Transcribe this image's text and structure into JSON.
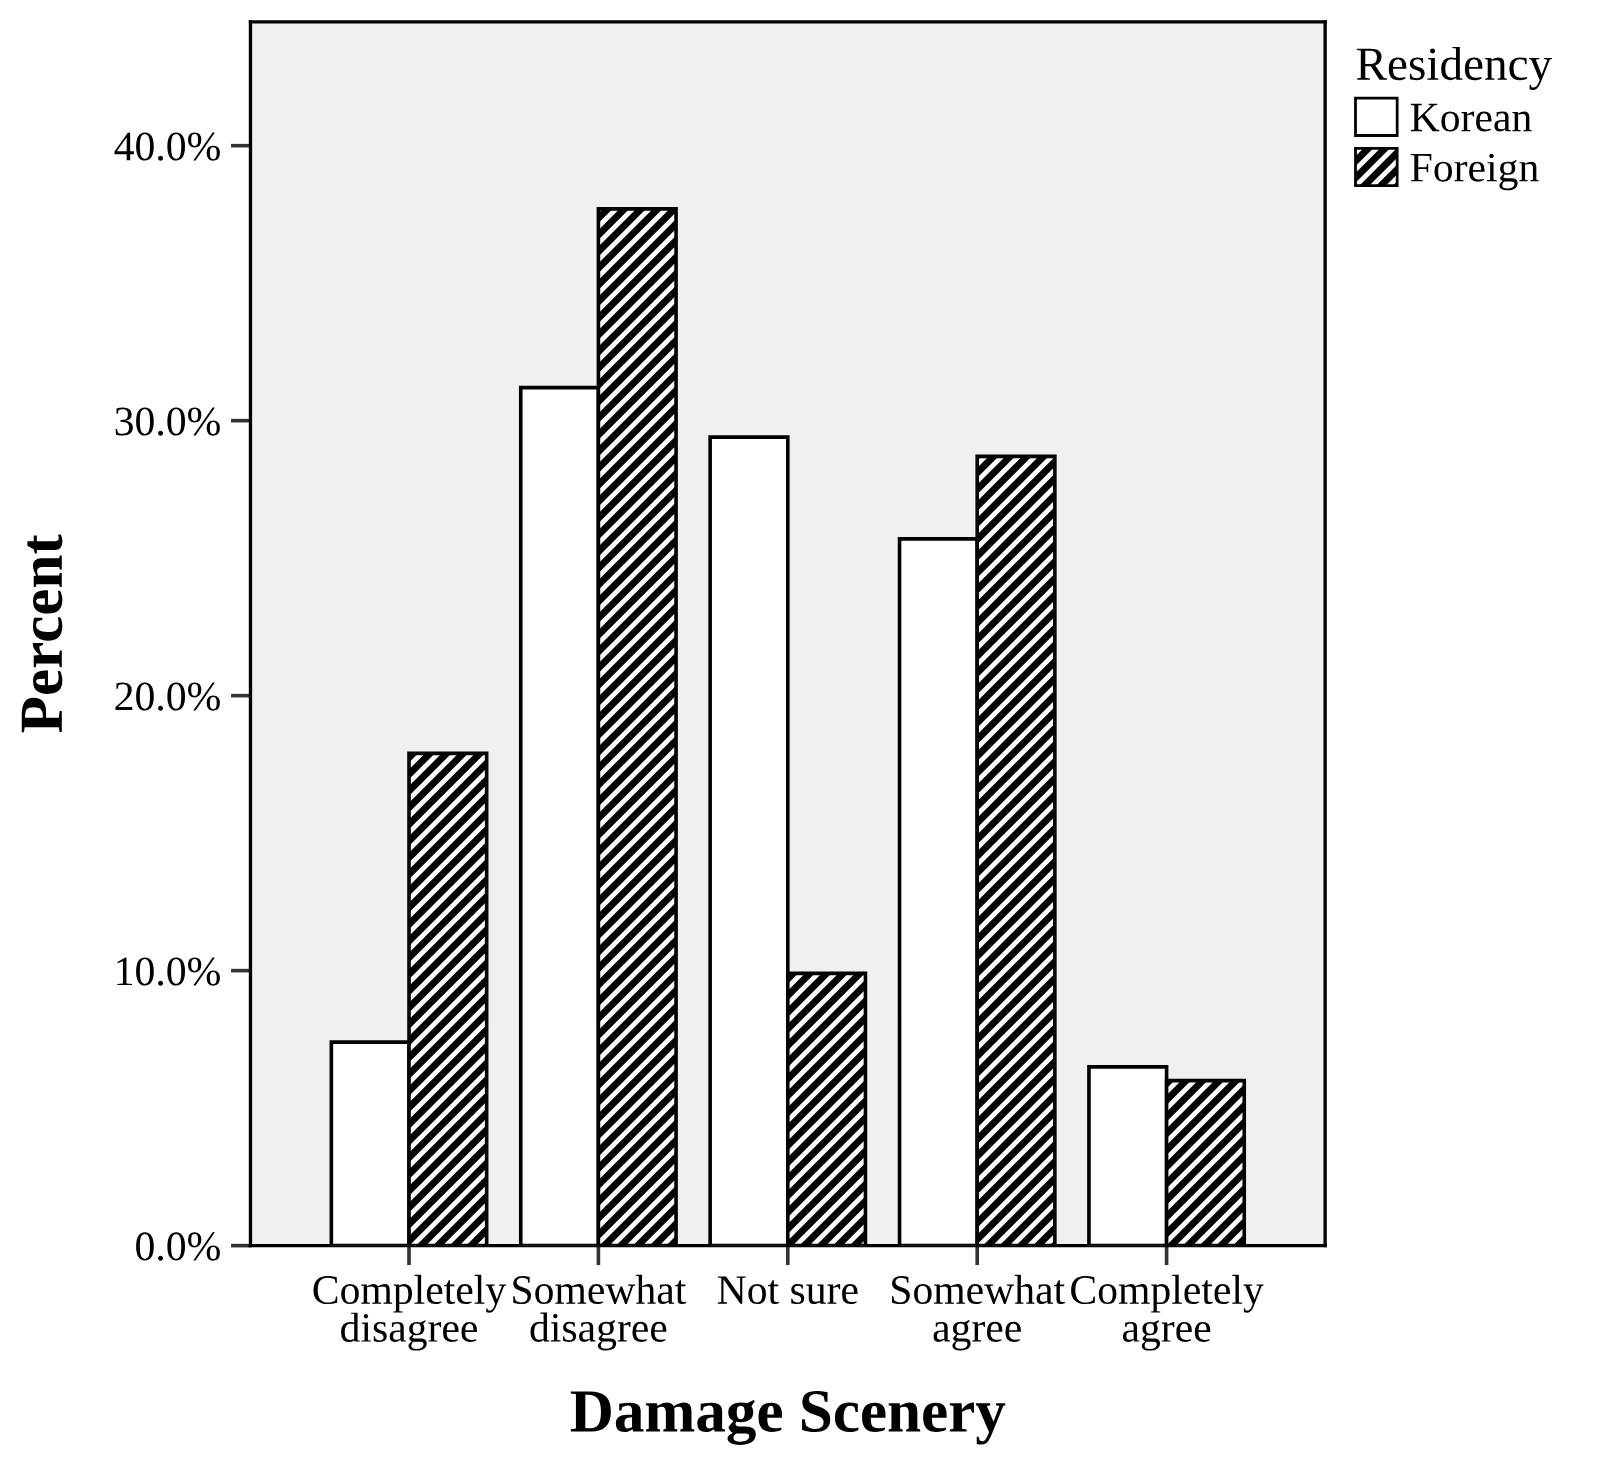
{
  "chart_data": {
    "type": "bar",
    "xlabel": "Damage Scenery",
    "ylabel": "Percent",
    "legend_title": "Residency",
    "legend": "top right",
    "categories": [
      "Completely\ndisagree",
      "Somewhat\ndisagree",
      "Not sure",
      "Somewhat\nagree",
      "Completely\nagree"
    ],
    "series": [
      {
        "name": "Korean",
        "color": "#ffffff",
        "values": [
          7.4,
          31.2,
          29.4,
          25.7,
          6.5
        ]
      },
      {
        "name": "Foreign",
        "color": "#000000",
        "values": [
          17.9,
          37.7,
          9.9,
          28.7,
          6.0
        ]
      }
    ],
    "ylim": [
      0,
      44.5
    ],
    "yticks": [
      {
        "value": 0,
        "label": "0.0%"
      },
      {
        "value": 10,
        "label": "10.0%"
      },
      {
        "value": 20,
        "label": "20.0%"
      },
      {
        "value": 30,
        "label": "30.0%"
      },
      {
        "value": 40,
        "label": "40.0%"
      }
    ],
    "grid": false
  }
}
